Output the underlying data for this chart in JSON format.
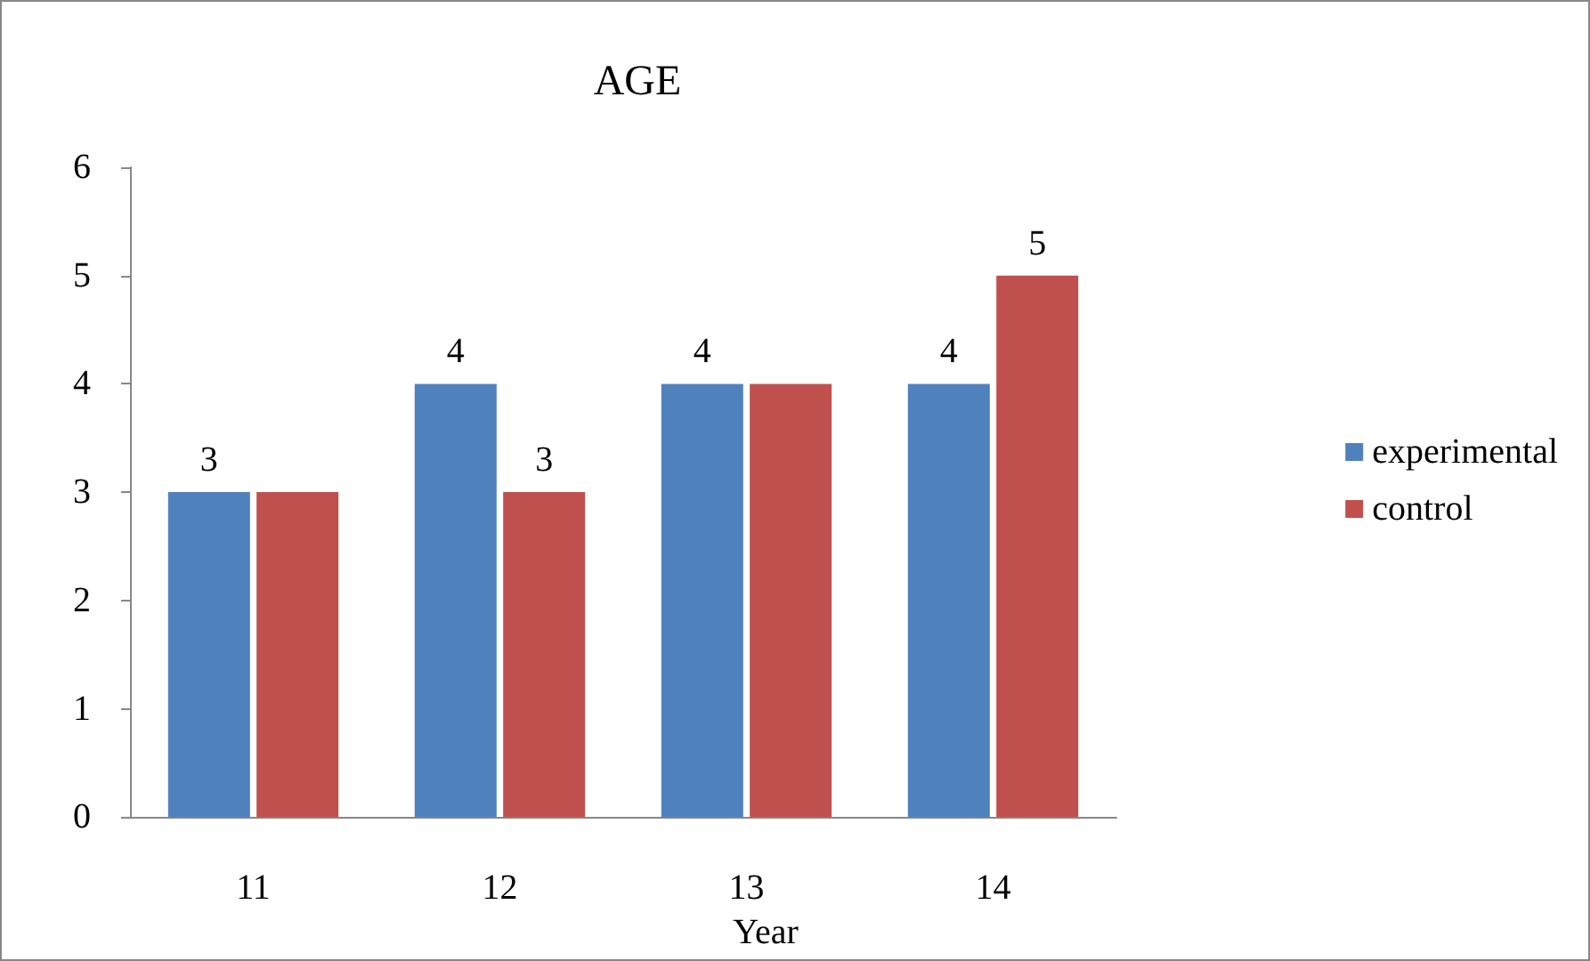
{
  "chart_data": {
    "type": "bar",
    "title": "AGE",
    "xlabel": "Year",
    "categories": [
      "11",
      "12",
      "13",
      "14"
    ],
    "series": [
      {
        "name": "experimental",
        "color": "#4f81bd",
        "values": [
          3,
          4,
          4,
          4
        ],
        "value_labels": [
          "3",
          "4",
          "4",
          "4"
        ]
      },
      {
        "name": "control",
        "color": "#c0504d",
        "values": [
          3,
          3,
          4,
          5
        ],
        "value_labels": [
          null,
          "3",
          null,
          "5"
        ]
      }
    ],
    "ylim": [
      0,
      6
    ],
    "yticks": [
      0,
      1,
      2,
      3,
      4,
      5,
      6
    ],
    "grid": false,
    "legend": "right"
  }
}
